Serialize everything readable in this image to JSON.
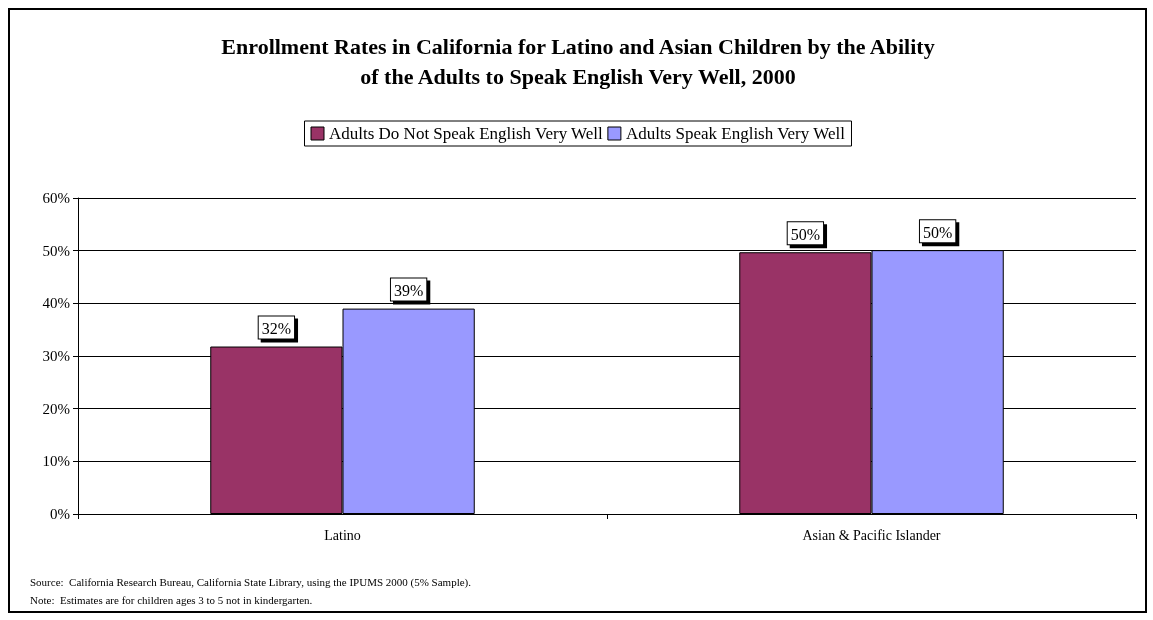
{
  "chart_data": {
    "type": "bar",
    "title": "Enrollment Rates in California for Latino and Asian Children by the Ability\nof the Adults to Speak English Very Well, 2000",
    "categories": [
      "Latino",
      "Asian & Pacific Islander"
    ],
    "series": [
      {
        "name": "Adults Do Not Speak English Very Well",
        "color": "#993366",
        "values": [
          31.8,
          49.7
        ],
        "value_labels": [
          "32%",
          "50%"
        ]
      },
      {
        "name": "Adults Speak English Very Well",
        "color": "#9999ff",
        "values": [
          39,
          50.1
        ],
        "value_labels": [
          "39%",
          "50%"
        ]
      }
    ],
    "ylim": [
      0,
      60
    ],
    "yticks": [
      {
        "value": 0,
        "label": "0%"
      },
      {
        "value": 10,
        "label": "10%"
      },
      {
        "value": 20,
        "label": "20%"
      },
      {
        "value": 30,
        "label": "30%"
      },
      {
        "value": 40,
        "label": "40%"
      },
      {
        "value": 50,
        "label": "50%"
      },
      {
        "value": 60,
        "label": "60%"
      }
    ],
    "grid": "y",
    "legend": "top",
    "annotations": [
      "Source:  California Research Bureau, California State Library, using the IPUMS 2000 (5% Sample).",
      "Note:  Estimates are for children ages 3 to 5 not in kindergarten."
    ]
  }
}
